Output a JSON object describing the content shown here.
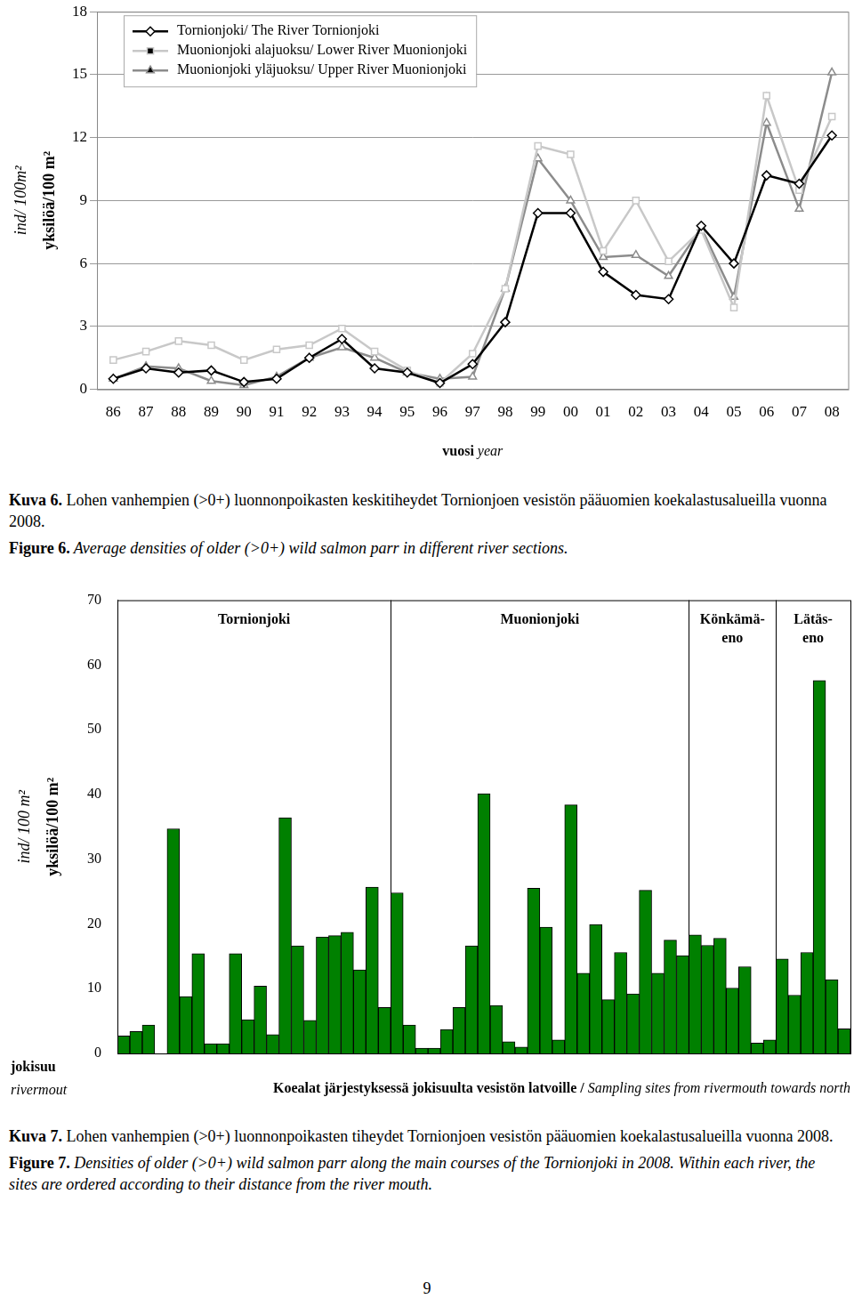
{
  "page_number": "9",
  "chart_data": [
    {
      "type": "line",
      "categories": [
        "86",
        "87",
        "88",
        "89",
        "90",
        "91",
        "92",
        "93",
        "94",
        "95",
        "96",
        "97",
        "98",
        "99",
        "00",
        "01",
        "02",
        "03",
        "04",
        "05",
        "06",
        "07",
        "08"
      ],
      "ylim": [
        0,
        18
      ],
      "yticks": [
        0,
        3,
        6,
        9,
        12,
        15,
        18
      ],
      "grid": true,
      "legend": "upper left",
      "ylabel": [
        "ind/ 100m²",
        "yksilöä/100 m²"
      ],
      "xlabel": [
        "vuosi",
        "year"
      ],
      "series": [
        {
          "name": "Tornionjoki/ The River Tornionjoki",
          "color": "#000000",
          "marker": "diamond",
          "values": [
            0.5,
            1.0,
            0.8,
            0.9,
            0.35,
            0.5,
            1.5,
            2.4,
            1.0,
            0.8,
            0.3,
            1.2,
            3.2,
            8.4,
            8.4,
            5.6,
            4.5,
            4.3,
            7.8,
            6.0,
            10.2,
            9.8,
            12.1
          ]
        },
        {
          "name": "Muonionjoki alajuoksu/ Lower River Muonionjoki",
          "color": "#c8c8c8",
          "marker": "square",
          "values": [
            1.4,
            1.8,
            2.3,
            2.1,
            1.4,
            1.9,
            2.1,
            2.9,
            1.8,
            0.9,
            0.3,
            1.7,
            4.8,
            11.6,
            11.2,
            6.6,
            9.0,
            6.1,
            7.6,
            3.9,
            14.0,
            9.5,
            13.0
          ]
        },
        {
          "name": "Muonionjoki yläjuoksu/ Upper River Muonionjoki",
          "color": "#8c8c8c",
          "marker": "triangle",
          "values": [
            0.5,
            1.1,
            1.0,
            0.4,
            0.2,
            0.6,
            1.5,
            2.0,
            1.5,
            0.8,
            0.5,
            0.6,
            4.8,
            11.0,
            9.0,
            6.3,
            6.4,
            5.4,
            7.7,
            4.4,
            12.7,
            8.6,
            15.1
          ]
        }
      ],
      "caption": {
        "fi": {
          "label": "Kuva 6.",
          "text": "Lohen vanhempien (>0+) luonnonpoikasten keskitiheydet Tornionjoen vesistön pääuomien koekalastusalueilla vuonna 2008."
        },
        "en": {
          "label": "Figure 6.",
          "text": "Average densities of older (>0+) wild salmon parr in different river sections."
        }
      }
    },
    {
      "type": "bar",
      "groups": [
        {
          "name": "Tornionjoki",
          "values": [
            2.7,
            3.4,
            4.4,
            0,
            34.7,
            8.8,
            15.4,
            1.5,
            1.5,
            15.4,
            5.2,
            10.4,
            2.9,
            36.4,
            16.6,
            5.1,
            18.0,
            18.2,
            18.7,
            12.9,
            25.7,
            7.1
          ]
        },
        {
          "name": "Muonionjoki",
          "values": [
            24.8,
            4.4,
            0.8,
            0.8,
            3.7,
            7.1,
            16.6,
            40.1,
            7.4,
            1.8,
            1.0,
            25.5,
            19.5,
            2.1,
            38.4,
            12.4,
            19.9,
            8.3,
            15.6,
            9.2,
            25.2,
            12.4,
            17.5,
            15.1
          ]
        },
        {
          "name": "Könkämä-\neno",
          "values": [
            18.3,
            16.7,
            17.8,
            10.1,
            13.4,
            1.6,
            2.1
          ]
        },
        {
          "name": "Lätäs-\neno",
          "values": [
            14.6,
            9.0,
            15.6,
            57.6,
            11.4,
            3.8
          ]
        }
      ],
      "color": "#008000",
      "ylim": [
        0,
        70
      ],
      "yticks": [
        0,
        10,
        20,
        30,
        40,
        50,
        60,
        70
      ],
      "grid": false,
      "tick_labels": "y",
      "ylabel": [
        "ind/ 100 m²",
        "yksilöä/100 m²"
      ],
      "xlabel": [
        "Koealat järjestyksessä jokisuulta vesistön latvoille /",
        "Sampling sites from rivermouth towards north"
      ],
      "annotations": [
        "jokisuu",
        "rivermout"
      ],
      "caption": {
        "fi": {
          "label": "Kuva 7.",
          "text": "Lohen vanhempien (>0+) luonnonpoikasten tiheydet Tornionjoen vesistön pääuomien koekalastusalueilla vuonna 2008."
        },
        "en": {
          "label": "Figure 7.",
          "text": "Densities of older (>0+) wild salmon parr along the main courses of the Tornionjoki in 2008. Within each river, the sites are ordered according to their distance from the river mouth."
        }
      }
    }
  ]
}
